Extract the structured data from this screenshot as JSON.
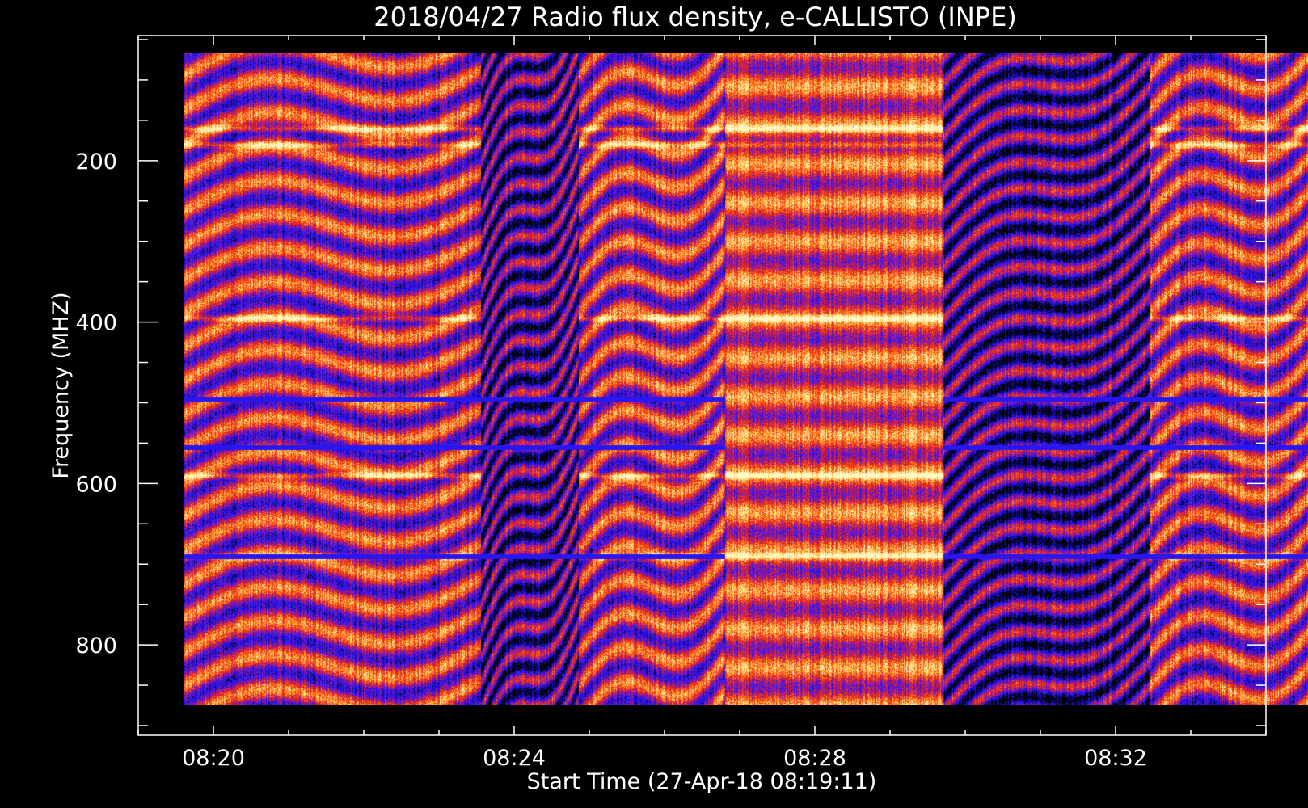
{
  "chart_data": {
    "type": "heatmap",
    "title": "2018/04/27  Radio flux density, e-CALLISTO (INPE)",
    "xlabel": "Start Time (27-Apr-18 08:19:11)",
    "ylabel": "Frequency (MHZ)",
    "x_ticks": [
      "08:20",
      "08:24",
      "08:28",
      "08:32"
    ],
    "x_tick_minutes": [
      20,
      24,
      28,
      32
    ],
    "x_minor_step_minutes": 1,
    "x_range_minutes": [
      19,
      34
    ],
    "y_ticks": [
      200,
      400,
      600,
      800
    ],
    "y_minor_step": 50,
    "y_range": [
      45,
      912
    ],
    "y_inverted": true,
    "data_time_range_minutes": [
      19.6,
      34.6
    ],
    "data_freq_range": [
      67,
      874
    ],
    "colormap": [
      "#000000",
      "#1a10d8",
      "#2c18ff",
      "#a01898",
      "#e8200a",
      "#ff5a1a",
      "#ffc840",
      "#fff8c8"
    ],
    "segments": [
      {
        "start": 19.6,
        "end": 23.55,
        "type": "stripes",
        "slope": 0.35
      },
      {
        "start": 23.55,
        "end": 24.85,
        "type": "quiet",
        "slope": 1.0
      },
      {
        "start": 24.85,
        "end": 26.8,
        "type": "stripes",
        "slope": 0.55
      },
      {
        "start": 26.8,
        "end": 29.7,
        "type": "bright",
        "slope": 0.1
      },
      {
        "start": 29.7,
        "end": 32.45,
        "type": "quiet",
        "slope": 0.9
      },
      {
        "start": 32.45,
        "end": 34.6,
        "type": "stripes",
        "slope": 0.5
      }
    ],
    "hot_lines_mhz": [
      160,
      180,
      395,
      590,
      690
    ],
    "dark_lines_mhz": [
      495,
      555,
      690
    ]
  }
}
